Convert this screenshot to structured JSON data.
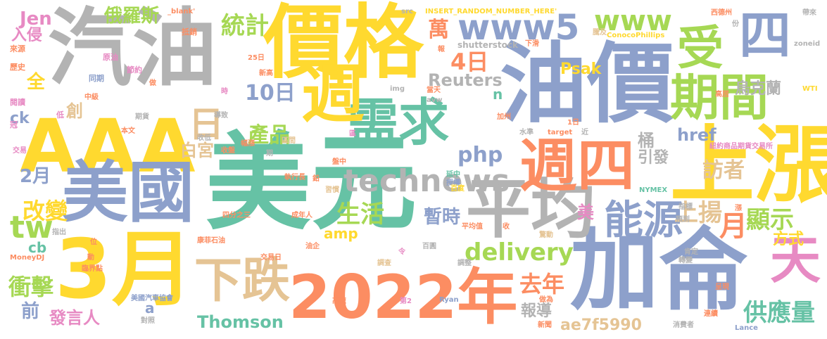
{
  "palette": {
    "orange": "#fc8d62",
    "blue": "#8da0cb",
    "green": "#66c2a5",
    "yellow": "#ffd92f",
    "lime": "#a6d854",
    "gray": "#b3b3b3",
    "tan": "#e5c494",
    "pink": "#e78ac3"
  },
  "words": [
    {
      "id": "meiyuan",
      "text": "美元",
      "color": "#66c2a5"
    },
    {
      "id": "qiyou",
      "text": "汽油",
      "color": "#b3b3b3"
    },
    {
      "id": "jiage",
      "text": "價格",
      "color": "#ffd92f"
    },
    {
      "id": "youjia",
      "text": "油價",
      "color": "#8da0cb"
    },
    {
      "id": "jialun",
      "text": "加侖",
      "color": "#8da0cb"
    },
    {
      "id": "aaa",
      "text": "AAA",
      "color": "#ffd92f"
    },
    {
      "id": "meiguo",
      "text": "美國",
      "color": "#8da0cb"
    },
    {
      "id": "sanyue",
      "text": "3月",
      "color": "#ffd92f"
    },
    {
      "id": "y2022",
      "text": "2022年",
      "color": "#fc8d62"
    },
    {
      "id": "shangzhang",
      "text": "上漲",
      "color": "#ffd92f"
    },
    {
      "id": "pingjun",
      "text": "平均",
      "color": "#b3b3b3"
    },
    {
      "id": "zhousi1",
      "text": "週四",
      "color": "#fc8d62"
    },
    {
      "id": "xuqiu",
      "text": "需求",
      "color": "#66c2a5"
    },
    {
      "id": "zhou",
      "text": "週",
      "color": "#ffd92f"
    },
    {
      "id": "qijian",
      "text": "期間",
      "color": "#a6d854"
    },
    {
      "id": "xiadie",
      "text": "下跌",
      "color": "#e5c494"
    },
    {
      "id": "nengyuan",
      "text": "能源",
      "color": "#8da0cb"
    },
    {
      "id": "technews",
      "text": "technews",
      "color": "#b3b3b3"
    },
    {
      "id": "www5",
      "text": "www5",
      "color": "#8da0cb"
    },
    {
      "id": "www",
      "text": "www",
      "color": "#a6d854"
    },
    {
      "id": "tian",
      "text": "天",
      "color": "#e78ac3"
    },
    {
      "id": "shou",
      "text": "受",
      "color": "#a6d854"
    },
    {
      "id": "si",
      "text": "四",
      "color": "#8da0cb"
    },
    {
      "id": "tw",
      "text": "tw",
      "color": "#a6d854"
    },
    {
      "id": "ri",
      "text": "日",
      "color": "#e5c494"
    },
    {
      "id": "delivery",
      "text": "delivery",
      "color": "#a6d854"
    },
    {
      "id": "gongyingliang",
      "text": "供應量",
      "color": "#66c2a5"
    },
    {
      "id": "thomson",
      "text": "Thomson",
      "color": "#66c2a5"
    },
    {
      "id": "yue",
      "text": "月",
      "color": "#fc8d62"
    },
    {
      "id": "xianshi",
      "text": "顯示",
      "color": "#a6d854"
    },
    {
      "id": "shangyang",
      "text": "上揚",
      "color": "#e5c494"
    },
    {
      "id": "chongji",
      "text": "衝擊",
      "color": "#a6d854"
    },
    {
      "id": "gaibian",
      "text": "改變",
      "color": "#ffd92f"
    },
    {
      "id": "shenghuo",
      "text": "生活",
      "color": "#a6d854"
    },
    {
      "id": "chanpin",
      "text": "產品",
      "color": "#a6d854"
    },
    {
      "id": "tongji",
      "text": "統計",
      "color": "#a6d854"
    },
    {
      "id": "php",
      "text": "php",
      "color": "#8da0cb"
    },
    {
      "id": "reuters",
      "text": "Reuters",
      "color": "#b3b3b3"
    },
    {
      "id": "siri",
      "text": "4日",
      "color": "#fc8d62"
    },
    {
      "id": "shiri",
      "text": "10日",
      "color": "#8da0cb"
    },
    {
      "id": "qunian",
      "text": "去年",
      "color": "#fc8d62"
    },
    {
      "id": "fangwenzhe",
      "text": "訪者",
      "color": "#e5c494"
    },
    {
      "id": "fangshi",
      "text": "方式",
      "color": "#ffd92f"
    },
    {
      "id": "zanshi",
      "text": "暫時",
      "color": "#8da0cb"
    },
    {
      "id": "ae7f5990",
      "text": "ae7f5990",
      "color": "#e5c494"
    },
    {
      "id": "eluosi",
      "text": "俄羅斯",
      "color": "#a6d854"
    },
    {
      "id": "wan",
      "text": "萬",
      "color": "#fc8d62"
    },
    {
      "id": "eryue",
      "text": "2月",
      "color": "#8da0cb"
    },
    {
      "id": "fayanren",
      "text": "發言人",
      "color": "#e78ac3"
    },
    {
      "id": "baogong",
      "text": "白宮",
      "color": "#e5c494"
    },
    {
      "id": "href",
      "text": "href",
      "color": "#8da0cb"
    },
    {
      "id": "psak",
      "text": "Psak",
      "color": "#ffd92f"
    },
    {
      "id": "wukelan",
      "text": "烏克蘭",
      "color": "#b3b3b3"
    },
    {
      "id": "tong",
      "text": "桶",
      "color": "#b3b3b3"
    },
    {
      "id": "yinfa",
      "text": "引發",
      "color": "#b3b3b3"
    },
    {
      "id": "baodao",
      "text": "報導",
      "color": "#b3b3b3"
    },
    {
      "id": "mei",
      "text": "美",
      "color": "#e78ac3"
    },
    {
      "id": "chuang",
      "text": "創",
      "color": "#e5c494"
    },
    {
      "id": "quan",
      "text": "全",
      "color": "#ffd92f"
    },
    {
      "id": "qian",
      "text": "前",
      "color": "#8da0cb"
    },
    {
      "id": "jen",
      "text": "Jen",
      "color": "#e78ac3"
    },
    {
      "id": "ruqin",
      "text": "入侵",
      "color": "#e78ac3"
    },
    {
      "id": "ck",
      "text": "ck",
      "color": "#8da0cb"
    },
    {
      "id": "cb",
      "text": "cb",
      "color": "#66c2a5"
    },
    {
      "id": "a",
      "text": "a",
      "color": "#8da0cb"
    },
    {
      "id": "n",
      "text": "n",
      "color": "#66c2a5"
    },
    {
      "id": "amp",
      "text": "amp",
      "color": "#ffd92f"
    },
    {
      "id": "blank",
      "text": "_blank'",
      "color": "#fc8d62"
    },
    {
      "id": "dixiao",
      "text": "抵銷",
      "color": "#fc8d62"
    },
    {
      "id": "src",
      "text": "src",
      "color": "#b3b3b3"
    },
    {
      "id": "insert",
      "text": "INSERT_RANDOM_NUMBER_HERE'",
      "color": "#ffd92f"
    },
    {
      "id": "tengji",
      "text": "騰及",
      "color": "#e5c494"
    },
    {
      "id": "xidezhou",
      "text": "西德州",
      "color": "#fc8d62"
    },
    {
      "id": "fen",
      "text": "份",
      "color": "#b3b3b3"
    },
    {
      "id": "dailai",
      "text": "帶來",
      "color": "#b3b3b3"
    },
    {
      "id": "conoco",
      "text": "ConocoPhillips",
      "color": "#ffd92f"
    },
    {
      "id": "shutterstock",
      "text": "shutterstock",
      "color": "#b3b3b3"
    },
    {
      "id": "xiahua",
      "text": "下滑",
      "color": "#fc8d62"
    },
    {
      "id": "zoneid",
      "text": "zoneid",
      "color": "#b3b3b3"
    },
    {
      "id": "laiyuan",
      "text": "來源",
      "color": "#fc8d62"
    },
    {
      "id": "yuanyou",
      "text": "原油",
      "color": "#e78ac3"
    },
    {
      "id": "bao",
      "text": "報",
      "color": "#fc8d62"
    },
    {
      "id": "ershiwuri",
      "text": "25日",
      "color": "#fc8d62"
    },
    {
      "id": "lishi",
      "text": "歷史",
      "color": "#fc8d62"
    },
    {
      "id": "tongqi",
      "text": "同期",
      "color": "#8da0cb"
    },
    {
      "id": "jieyue",
      "text": "節約",
      "color": "#e78ac3"
    },
    {
      "id": "xingao",
      "text": "新高",
      "color": "#fc8d62"
    },
    {
      "id": "zuo",
      "text": "做",
      "color": "#fc8d62"
    },
    {
      "id": "img",
      "text": "img",
      "color": "#b3b3b3"
    },
    {
      "id": "dangtian",
      "text": "當天",
      "color": "#fc8d62"
    },
    {
      "id": "avw",
      "text": "avw",
      "color": "#b3b3b3"
    },
    {
      "id": "gaoju",
      "text": "高居",
      "color": "#fc8d62"
    },
    {
      "id": "wti",
      "text": "WTI",
      "color": "#ffd92f"
    },
    {
      "id": "zhongji",
      "text": "中級",
      "color": "#fc8d62"
    },
    {
      "id": "shi",
      "text": "時",
      "color": "#e78ac3"
    },
    {
      "id": "jiankao",
      "text": "閱讀",
      "color": "#e78ac3"
    },
    {
      "id": "di",
      "text": "低",
      "color": "#e78ac3"
    },
    {
      "id": "qihuo",
      "text": "期貨",
      "color": "#b3b3b3"
    },
    {
      "id": "daozhi",
      "text": "導致",
      "color": "#b3b3b3"
    },
    {
      "id": "jiazhou",
      "text": "加州",
      "color": "#fc8d62"
    },
    {
      "id": "guan",
      "text": "冠",
      "color": "#e78ac3"
    },
    {
      "id": "benwen",
      "text": "本文",
      "color": "#fc8d62"
    },
    {
      "id": "shoudi",
      "text": "收低",
      "color": "#b3b3b3"
    },
    {
      "id": "qu",
      "text": "區",
      "color": "#e78ac3"
    },
    {
      "id": "shuiping",
      "text": "水準",
      "color": "#b3b3b3"
    },
    {
      "id": "target",
      "text": "target",
      "color": "#fc8d62"
    },
    {
      "id": "yiri",
      "text": "1日",
      "color": "#fc8d62"
    },
    {
      "id": "jin",
      "text": "近",
      "color": "#b3b3b3"
    },
    {
      "id": "jiaoyi",
      "text": "交易",
      "color": "#e78ac3"
    },
    {
      "id": "fuzhang",
      "text": "幅漲",
      "color": "#fc8d62"
    },
    {
      "id": "shouban",
      "text": "收盤",
      "color": "#fc8d62"
    },
    {
      "id": "qijian2",
      "text": "期",
      "color": "#b3b3b3"
    },
    {
      "id": "quyu",
      "text": "區間",
      "color": "#e5c494"
    },
    {
      "id": "niuyue",
      "text": "紐約商品期貨交易所",
      "color": "#e78ac3"
    },
    {
      "id": "zhixingzhang",
      "text": "執行長",
      "color": "#fc8d62"
    },
    {
      "id": "qian2",
      "text": "鉛",
      "color": "#fc8d62"
    },
    {
      "id": "panzhong",
      "text": "盤中",
      "color": "#fc8d62"
    },
    {
      "id": "yanzhong",
      "text": "延中",
      "color": "#66c2a5"
    },
    {
      "id": "shouquan",
      "text": "授權",
      "color": "#8da0cb"
    },
    {
      "id": "baidu",
      "text": "百度",
      "color": "#ffd92f"
    },
    {
      "id": "xiguan",
      "text": "習慣",
      "color": "#e5c494"
    },
    {
      "id": "nymex",
      "text": "NYMEX",
      "color": "#66c2a5"
    },
    {
      "id": "zhibiao",
      "text": "指標",
      "color": "#b3b3b3"
    },
    {
      "id": "sifenzhisan",
      "text": "四分之三",
      "color": "#fc8d62"
    },
    {
      "id": "chengnianren",
      "text": "成年人",
      "color": "#fc8d62"
    },
    {
      "id": "pingjunzhi",
      "text": "平均值",
      "color": "#fc8d62"
    },
    {
      "id": "shou2",
      "text": "收",
      "color": "#fc8d62"
    },
    {
      "id": "jingdong",
      "text": "驚動",
      "color": "#e5c494"
    },
    {
      "id": "kendelu",
      "text": "預到",
      "color": "#b3b3b3"
    },
    {
      "id": "kangfei",
      "text": "康菲石油",
      "color": "#fc8d62"
    },
    {
      "id": "zhichu",
      "text": "指出",
      "color": "#b3b3b3"
    },
    {
      "id": "youqi",
      "text": "油企",
      "color": "#fc8d62"
    },
    {
      "id": "wei",
      "text": "位",
      "color": "#fc8d62"
    },
    {
      "id": "ling",
      "text": "令",
      "color": "#e78ac3"
    },
    {
      "id": "baiyuan",
      "text": "百圓",
      "color": "#b3b3b3"
    },
    {
      "id": "kending",
      "text": "肯定",
      "color": "#b3b3b3"
    },
    {
      "id": "moneydj",
      "text": "MoneyDJ",
      "color": "#fc8d62"
    },
    {
      "id": "dong",
      "text": "動",
      "color": "#fc8d62"
    },
    {
      "id": "zhuanbian",
      "text": "轉變",
      "color": "#b3b3b3"
    },
    {
      "id": "linjiedian",
      "text": "臨界點",
      "color": "#fc8d62"
    },
    {
      "id": "jiaoyiri",
      "text": "交易日",
      "color": "#fc8d62"
    },
    {
      "id": "diaocha",
      "text": "調查",
      "color": "#e5c494"
    },
    {
      "id": "tiaozheng",
      "text": "調整",
      "color": "#b3b3b3"
    },
    {
      "id": "zhouer",
      "text": "週二",
      "color": "#8da0cb"
    },
    {
      "id": "chengxian",
      "text": "呈現",
      "color": "#fc8d62"
    },
    {
      "id": "meiguoqiche",
      "text": "美國汽車協會",
      "color": "#8da0cb"
    },
    {
      "id": "gaosu",
      "text": "高速",
      "color": "#fc8d62"
    },
    {
      "id": "di2",
      "text": "第2",
      "color": "#e78ac3"
    },
    {
      "id": "ryan",
      "text": "Ryan",
      "color": "#8da0cb"
    },
    {
      "id": "zuogao",
      "text": "做為",
      "color": "#fc8d62"
    },
    {
      "id": "lianxu",
      "text": "連續",
      "color": "#fc8d62"
    },
    {
      "id": "duizhao",
      "text": "對照",
      "color": "#b3b3b3"
    },
    {
      "id": "xinwen",
      "text": "新聞",
      "color": "#fc8d62"
    },
    {
      "id": "xiaofeizhe",
      "text": "消費者",
      "color": "#b3b3b3"
    },
    {
      "id": "lance",
      "text": "Lance",
      "color": "#8da0cb"
    },
    {
      "id": "zhang2",
      "text": "漲",
      "color": "#fc8d62"
    }
  ]
}
